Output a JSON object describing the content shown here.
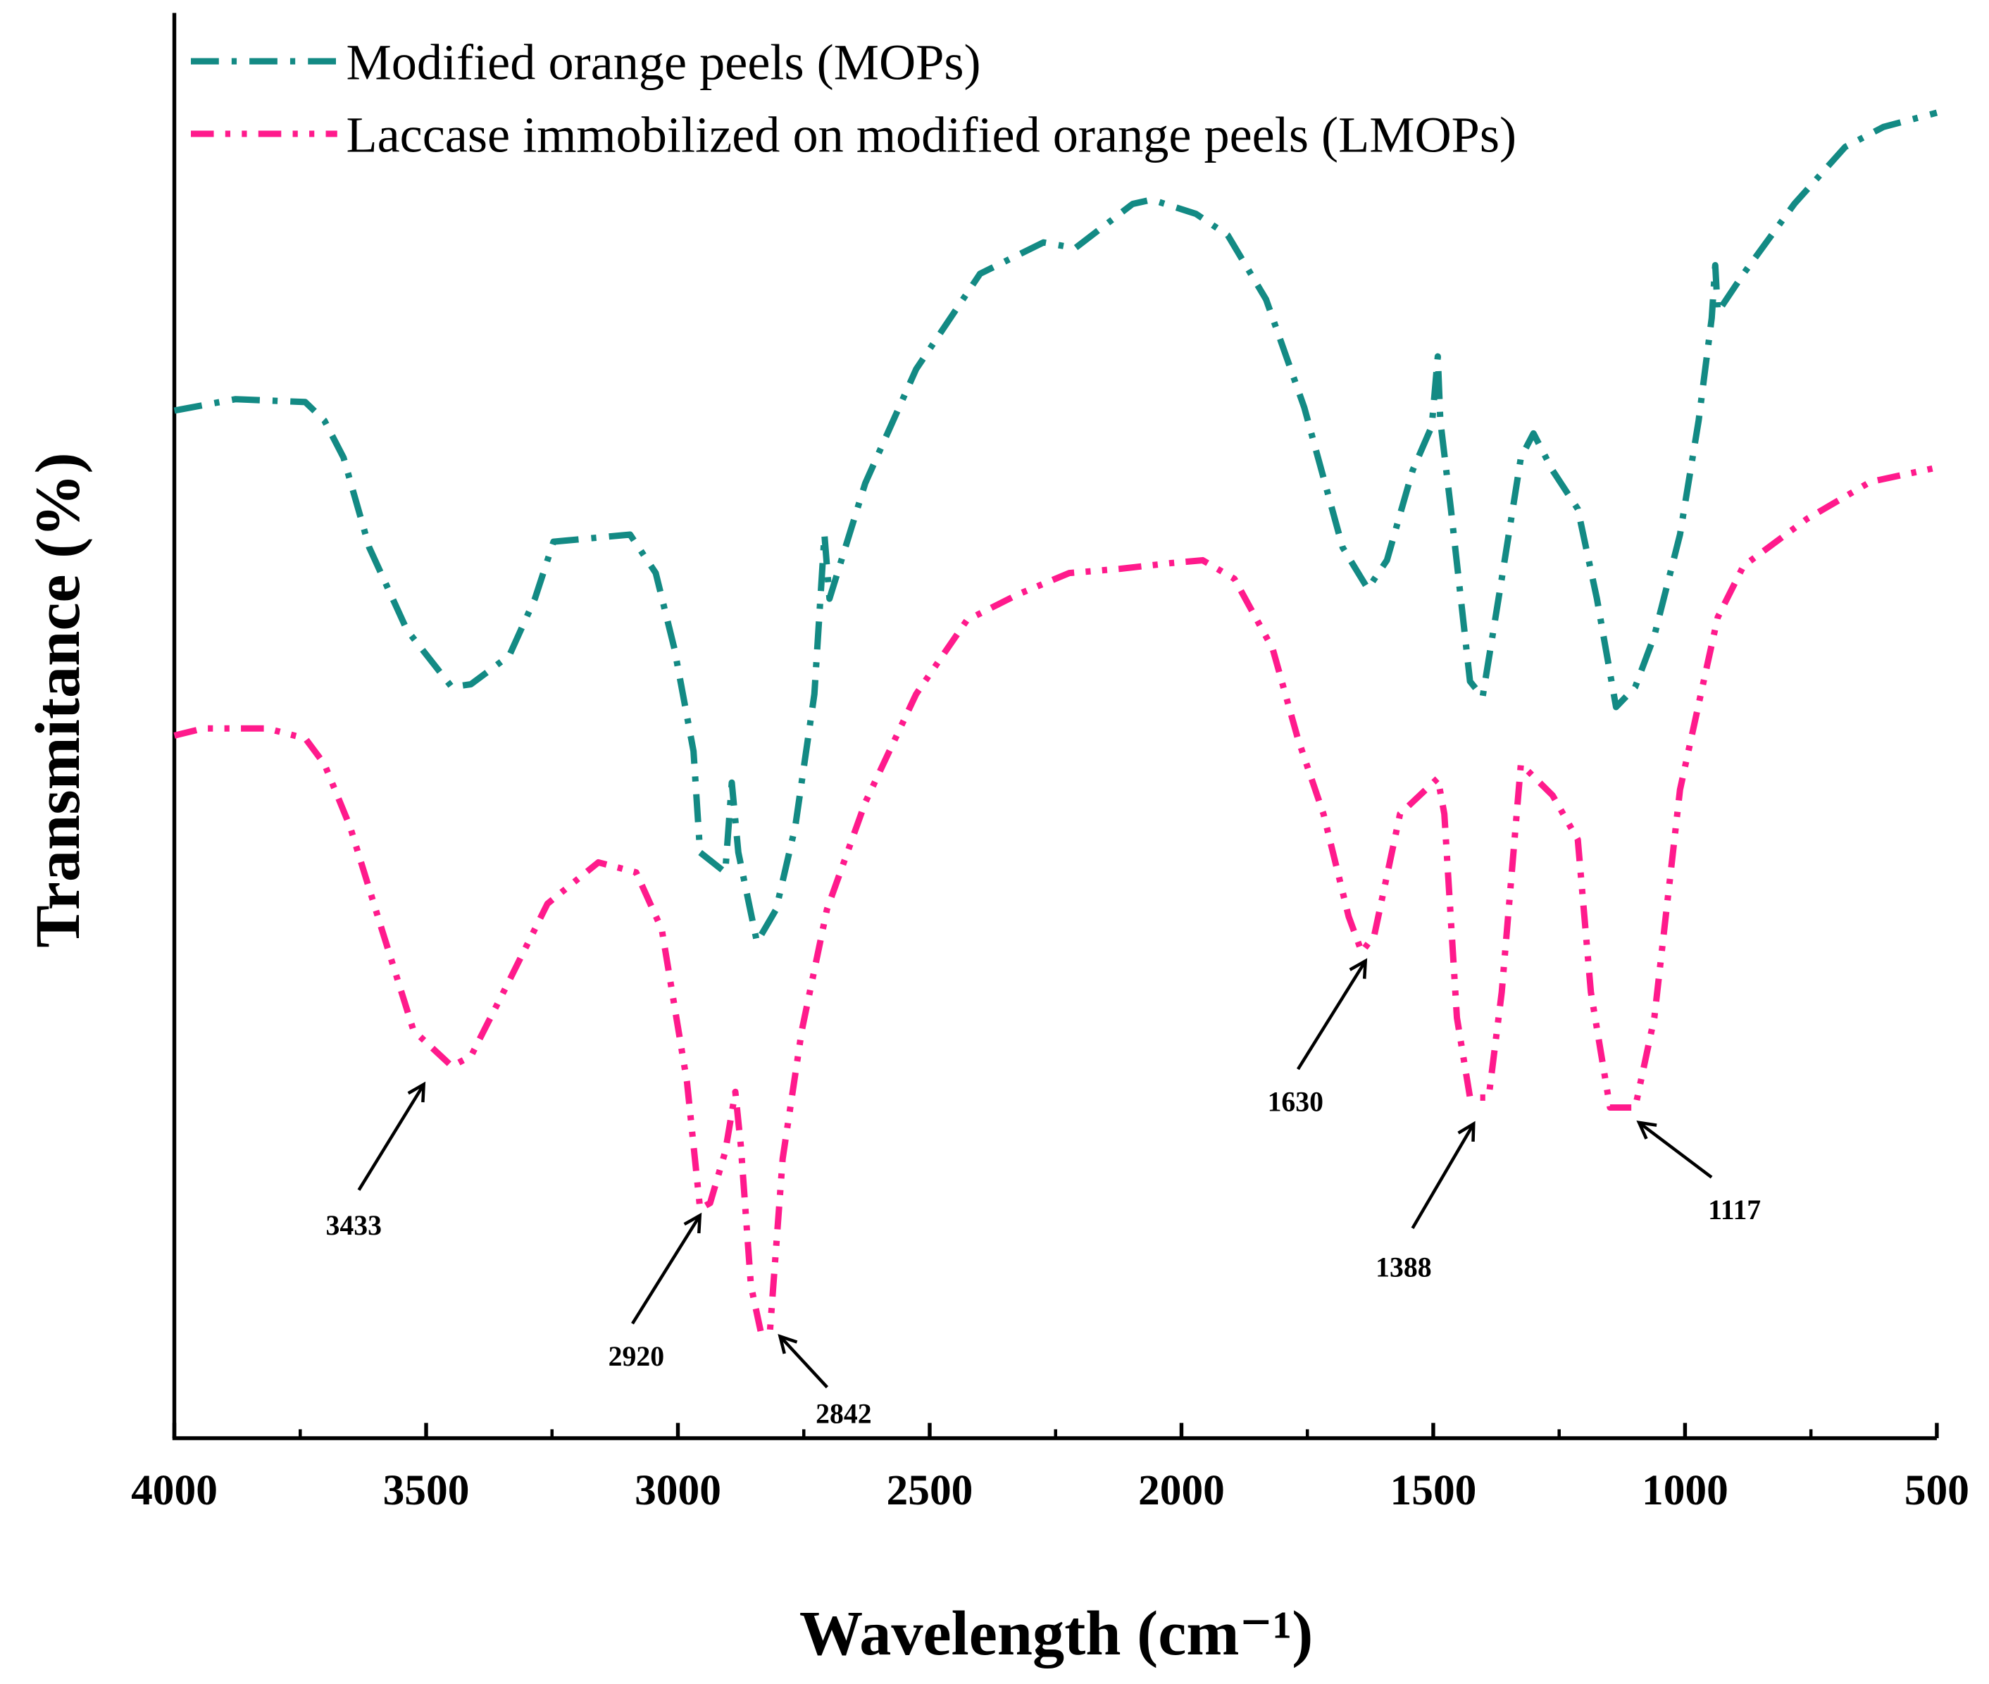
{
  "chart_data": {
    "type": "line",
    "xlabel": "Wavelength (cm⁻¹)",
    "ylabel": "Transmitance (%)",
    "xlim": [
      4000,
      500
    ],
    "xticks": [
      4000,
      3500,
      3000,
      2500,
      2000,
      1500,
      1000,
      500
    ],
    "xminorticks": [
      3750,
      3250,
      2750,
      2250,
      1750,
      1250,
      750
    ],
    "ylim": [
      0,
      100
    ],
    "legend": "upper left",
    "series": [
      {
        "name": "Modified orange peels (MOPs)",
        "color": "#138a84",
        "dash": "dash-dot",
        "x": [
          4000,
          3879,
          3740,
          3702,
          3664,
          3613,
          3538,
          3449,
          3411,
          3335,
          3284,
          3247,
          3095,
          3044,
          3007,
          2969,
          2956,
          2906,
          2893,
          2880,
          2843,
          2805,
          2767,
          2729,
          2709,
          2699,
          2628,
          2527,
          2400,
          2274,
          2211,
          2097,
          2059,
          1971,
          1908,
          1832,
          1756,
          1680,
          1630,
          1592,
          1541,
          1503,
          1491,
          1486,
          1465,
          1427,
          1402,
          1364,
          1326,
          1301,
          1263,
          1213,
          1175,
          1137,
          1099,
          1061,
          1010,
          973,
          947,
          940,
          935,
          884,
          783,
          682,
          606,
          500
        ],
        "values": [
          72.1,
          72.9,
          72.7,
          71.4,
          68.8,
          62.5,
          56.7,
          52.7,
          52.9,
          54.9,
          58.9,
          62.9,
          63.4,
          60.7,
          55.4,
          48.2,
          41.1,
          39.7,
          46.0,
          41.1,
          34.8,
          37.1,
          42.9,
          52.2,
          63.4,
          58.9,
          67.0,
          75.0,
          81.7,
          83.9,
          83.5,
          86.6,
          86.9,
          85.9,
          84.4,
          79.9,
          72.3,
          62.5,
          59.6,
          61.6,
          67.9,
          71.0,
          75.9,
          71.4,
          65.2,
          53.1,
          52.0,
          60.3,
          68.8,
          70.5,
          67.9,
          65.2,
          58.9,
          51.3,
          52.7,
          56.3,
          63.4,
          71.4,
          78.6,
          82.3,
          79.0,
          81.7,
          86.6,
          90.6,
          92.0,
          93.0
        ]
      },
      {
        "name": "Laccase immobilized on modified orange peels (LMOPs)",
        "color": "#ff1a8c",
        "dash": "dash-dot-dot",
        "x": [
          4000,
          3942,
          3816,
          3740,
          3702,
          3651,
          3588,
          3525,
          3449,
          3411,
          3335,
          3259,
          3158,
          3083,
          3032,
          2982,
          2956,
          2936,
          2906,
          2886,
          2875,
          2855,
          2835,
          2817,
          2792,
          2754,
          2704,
          2628,
          2527,
          2426,
          2325,
          2223,
          2122,
          2021,
          1958,
          1895,
          1819,
          1769,
          1718,
          1668,
          1642,
          1617,
          1566,
          1491,
          1478,
          1453,
          1427,
          1390,
          1364,
          1326,
          1263,
          1213,
          1187,
          1149,
          1099,
          1061,
          1010,
          960,
          935,
          884,
          758,
          632,
          500
        ],
        "values": [
          49.3,
          49.8,
          49.8,
          49.1,
          47.3,
          42.9,
          35.7,
          28.6,
          26.1,
          26.8,
          32.1,
          37.5,
          40.4,
          39.7,
          35.7,
          25.0,
          16.1,
          16.5,
          20.1,
          24.3,
          20.5,
          10.7,
          7.4,
          7.6,
          19.6,
          28.6,
          37.1,
          44.6,
          52.2,
          57.4,
          59.2,
          60.7,
          61.0,
          61.4,
          61.6,
          60.3,
          55.4,
          49.1,
          43.8,
          36.6,
          34.1,
          35.3,
          43.8,
          46.3,
          43.8,
          29.5,
          23.9,
          23.9,
          31.3,
          47.3,
          45.1,
          42.0,
          31.3,
          23.2,
          23.2,
          29.5,
          45.5,
          53.6,
          57.6,
          61.2,
          64.5,
          67.1,
          68.1
        ]
      }
    ],
    "annotations": [
      "3433",
      "2920",
      "2842",
      "1630",
      "1388",
      "1117"
    ]
  }
}
